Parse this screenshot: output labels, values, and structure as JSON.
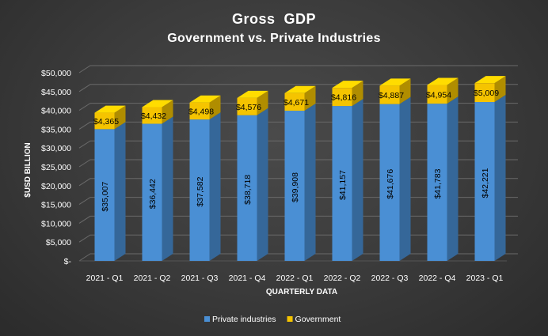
{
  "chart_data": {
    "type": "bar",
    "stacked": true,
    "style": "3d-column",
    "title": "Gross  GDP",
    "subtitle": "Government vs. Private Industries",
    "xlabel": "QUARTERLY DATA",
    "ylabel": "$USD BILLION",
    "ylim": [
      0,
      50000
    ],
    "y_ticks": [
      "$-",
      "$5,000",
      "$10,000",
      "$15,000",
      "$20,000",
      "$25,000",
      "$30,000",
      "$35,000",
      "$40,000",
      "$45,000",
      "$50,000"
    ],
    "grid": true,
    "legend_position": "bottom",
    "categories": [
      "2021 - Q1",
      "2021 - Q2",
      "2021 - Q3",
      "2021 - Q4",
      "2022 - Q1",
      "2022 - Q2",
      "2022 - Q3",
      "2022 - Q4",
      "2023 - Q1"
    ],
    "series": [
      {
        "name": "Private industries",
        "color": "#4a8fd4",
        "values": [
          35007,
          36442,
          37582,
          38718,
          39908,
          41157,
          41676,
          41783,
          42221
        ],
        "labels": [
          "$35,007",
          "$36,442",
          "$37,582",
          "$38,718",
          "$39,908",
          "$41,157",
          "$41,676",
          "$41,783",
          "$42,221"
        ]
      },
      {
        "name": "Government",
        "color": "#f5c400",
        "values": [
          4365,
          4432,
          4498,
          4576,
          4671,
          4816,
          4887,
          4954,
          5009
        ],
        "labels": [
          "$4,365",
          "$4,432",
          "$4,498",
          "$4,576",
          "$4,671",
          "$4,816",
          "$4,887",
          "$4,954",
          "$5,009"
        ]
      }
    ]
  }
}
